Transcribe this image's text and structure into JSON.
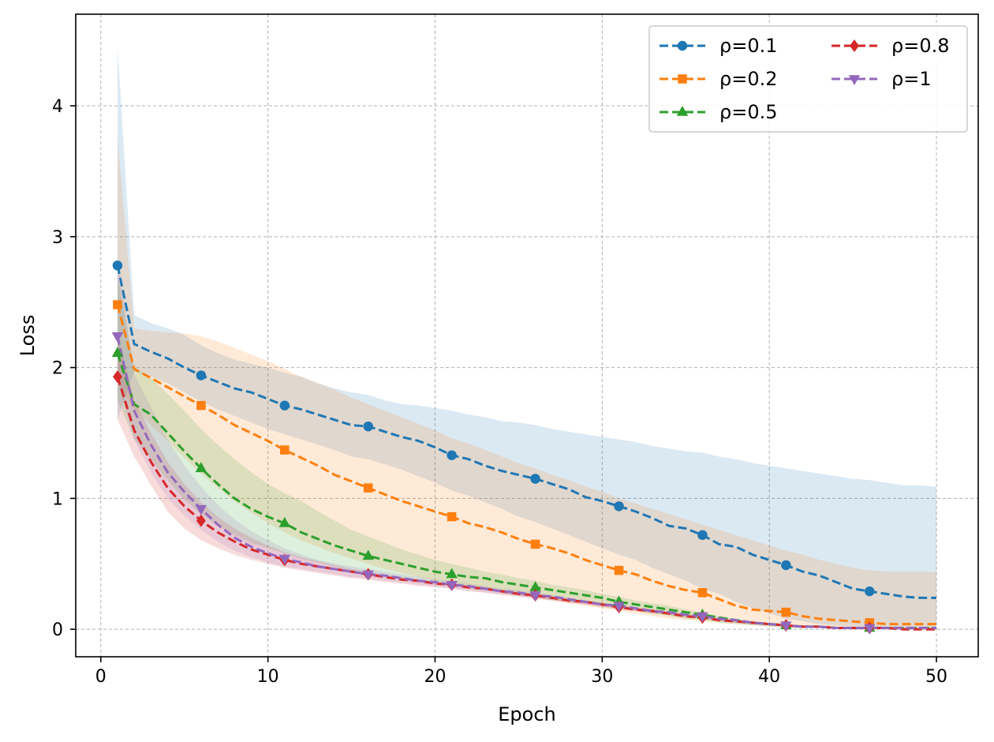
{
  "chart_data": {
    "type": "line",
    "title": "",
    "xlabel": "Epoch",
    "ylabel": "Loss",
    "xlim": [
      -1.5,
      52.5
    ],
    "ylim": [
      -0.21,
      4.7
    ],
    "xticks": [
      0,
      10,
      20,
      30,
      40,
      50
    ],
    "yticks": [
      0,
      1,
      2,
      3,
      4
    ],
    "grid": true,
    "legend": {
      "position": "top-right",
      "columns": 2
    },
    "x": [
      1,
      2,
      3,
      4,
      5,
      6,
      7,
      8,
      9,
      10,
      11,
      12,
      13,
      14,
      15,
      16,
      17,
      18,
      19,
      20,
      21,
      22,
      23,
      24,
      25,
      26,
      27,
      28,
      29,
      30,
      31,
      32,
      33,
      34,
      35,
      36,
      37,
      38,
      39,
      40,
      41,
      42,
      43,
      44,
      45,
      46,
      47,
      48,
      49,
      50
    ],
    "marker_every": [
      1,
      6,
      11,
      16,
      21,
      26,
      31,
      36,
      41,
      46
    ],
    "series": [
      {
        "name": "ρ=0.1",
        "color": "#1f77b4",
        "marker": "circle",
        "values": [
          2.78,
          2.18,
          2.12,
          2.07,
          2.0,
          1.94,
          1.89,
          1.84,
          1.81,
          1.76,
          1.71,
          1.68,
          1.64,
          1.6,
          1.56,
          1.55,
          1.51,
          1.47,
          1.44,
          1.39,
          1.33,
          1.3,
          1.25,
          1.21,
          1.18,
          1.15,
          1.11,
          1.07,
          1.01,
          0.98,
          0.94,
          0.9,
          0.85,
          0.79,
          0.77,
          0.72,
          0.65,
          0.63,
          0.57,
          0.53,
          0.49,
          0.44,
          0.41,
          0.36,
          0.31,
          0.29,
          0.27,
          0.25,
          0.24,
          0.24
        ],
        "upper": [
          4.45,
          2.4,
          2.34,
          2.3,
          2.25,
          2.17,
          2.11,
          2.06,
          2.03,
          2.0,
          1.96,
          1.93,
          1.88,
          1.84,
          1.81,
          1.79,
          1.75,
          1.72,
          1.71,
          1.69,
          1.67,
          1.64,
          1.62,
          1.59,
          1.58,
          1.56,
          1.53,
          1.51,
          1.49,
          1.47,
          1.45,
          1.43,
          1.4,
          1.38,
          1.36,
          1.35,
          1.32,
          1.3,
          1.27,
          1.25,
          1.23,
          1.21,
          1.19,
          1.17,
          1.15,
          1.14,
          1.12,
          1.1,
          1.1,
          1.09
        ],
        "lower": [
          1.6,
          1.97,
          1.93,
          1.88,
          1.81,
          1.74,
          1.68,
          1.63,
          1.58,
          1.53,
          1.49,
          1.45,
          1.41,
          1.37,
          1.32,
          1.3,
          1.26,
          1.22,
          1.17,
          1.12,
          1.06,
          1.02,
          0.97,
          0.92,
          0.86,
          0.82,
          0.77,
          0.72,
          0.67,
          0.62,
          0.57,
          0.53,
          0.47,
          0.42,
          0.37,
          0.31,
          0.27,
          0.21,
          0.16,
          0.12,
          0.08,
          0.06,
          0.04,
          0.03,
          0.02,
          0.02,
          0.01,
          0.01,
          0.01,
          0.01
        ]
      },
      {
        "name": "ρ=0.2",
        "color": "#ff7f0e",
        "marker": "square",
        "values": [
          2.48,
          1.99,
          1.92,
          1.85,
          1.78,
          1.71,
          1.64,
          1.56,
          1.5,
          1.44,
          1.37,
          1.31,
          1.25,
          1.18,
          1.13,
          1.08,
          1.03,
          0.98,
          0.94,
          0.9,
          0.86,
          0.81,
          0.78,
          0.74,
          0.69,
          0.65,
          0.62,
          0.58,
          0.53,
          0.49,
          0.45,
          0.42,
          0.37,
          0.33,
          0.3,
          0.28,
          0.23,
          0.18,
          0.15,
          0.14,
          0.13,
          0.1,
          0.08,
          0.07,
          0.06,
          0.05,
          0.04,
          0.04,
          0.04,
          0.04
        ],
        "upper": [
          3.75,
          2.3,
          2.28,
          2.27,
          2.26,
          2.24,
          2.2,
          2.15,
          2.1,
          2.05,
          1.99,
          1.93,
          1.88,
          1.83,
          1.77,
          1.72,
          1.67,
          1.62,
          1.57,
          1.52,
          1.46,
          1.42,
          1.37,
          1.32,
          1.27,
          1.23,
          1.18,
          1.14,
          1.09,
          1.05,
          1.0,
          0.96,
          0.92,
          0.88,
          0.84,
          0.8,
          0.76,
          0.72,
          0.68,
          0.64,
          0.6,
          0.57,
          0.53,
          0.5,
          0.47,
          0.45,
          0.44,
          0.44,
          0.44,
          0.44
        ],
        "lower": [
          1.88,
          1.68,
          1.56,
          1.44,
          1.31,
          1.19,
          1.08,
          0.98,
          0.89,
          0.81,
          0.74,
          0.68,
          0.63,
          0.58,
          0.54,
          0.5,
          0.46,
          0.43,
          0.4,
          0.37,
          0.34,
          0.32,
          0.3,
          0.28,
          0.26,
          0.24,
          0.22,
          0.2,
          0.18,
          0.16,
          0.14,
          0.12,
          0.1,
          0.08,
          0.07,
          0.06,
          0.05,
          0.04,
          0.03,
          0.02,
          0.02,
          0.01,
          0.01,
          0.01,
          0.0,
          0.0,
          0.0,
          0.0,
          0.0,
          0.0
        ]
      },
      {
        "name": "ρ=0.5",
        "color": "#2ca02c",
        "marker": "triangle-up",
        "values": [
          2.11,
          1.72,
          1.64,
          1.5,
          1.36,
          1.23,
          1.11,
          1.0,
          0.92,
          0.86,
          0.81,
          0.74,
          0.69,
          0.64,
          0.6,
          0.56,
          0.53,
          0.5,
          0.47,
          0.44,
          0.42,
          0.4,
          0.39,
          0.36,
          0.34,
          0.32,
          0.3,
          0.28,
          0.26,
          0.24,
          0.21,
          0.19,
          0.17,
          0.15,
          0.13,
          0.11,
          0.09,
          0.07,
          0.05,
          0.04,
          0.03,
          0.02,
          0.02,
          0.01,
          0.01,
          0.01,
          0.01,
          0.01,
          0.01,
          0.01
        ],
        "upper": [
          2.7,
          2.0,
          1.92,
          1.8,
          1.67,
          1.53,
          1.41,
          1.3,
          1.2,
          1.11,
          1.04,
          0.98,
          0.9,
          0.83,
          0.76,
          0.71,
          0.66,
          0.61,
          0.57,
          0.53,
          0.5,
          0.47,
          0.44,
          0.42,
          0.39,
          0.37,
          0.34,
          0.32,
          0.3,
          0.27,
          0.25,
          0.22,
          0.2,
          0.18,
          0.15,
          0.13,
          0.1,
          0.08,
          0.06,
          0.05,
          0.04,
          0.03,
          0.02,
          0.02,
          0.01,
          0.01,
          0.01,
          0.01,
          0.01,
          0.01
        ],
        "lower": [
          1.75,
          1.45,
          1.3,
          1.14,
          0.99,
          0.88,
          0.79,
          0.72,
          0.66,
          0.62,
          0.58,
          0.54,
          0.51,
          0.48,
          0.45,
          0.43,
          0.41,
          0.39,
          0.37,
          0.35,
          0.34,
          0.32,
          0.3,
          0.28,
          0.26,
          0.25,
          0.23,
          0.21,
          0.2,
          0.18,
          0.16,
          0.14,
          0.12,
          0.1,
          0.08,
          0.07,
          0.05,
          0.04,
          0.03,
          0.02,
          0.01,
          0.01,
          0.01,
          0.0,
          0.0,
          0.0,
          0.0,
          0.0,
          0.0,
          0.0
        ]
      },
      {
        "name": "ρ=0.8",
        "color": "#d62728",
        "marker": "diamond",
        "values": [
          1.93,
          1.52,
          1.28,
          1.08,
          0.94,
          0.83,
          0.74,
          0.67,
          0.61,
          0.57,
          0.53,
          0.5,
          0.48,
          0.46,
          0.44,
          0.42,
          0.4,
          0.38,
          0.37,
          0.35,
          0.34,
          0.32,
          0.31,
          0.29,
          0.27,
          0.26,
          0.24,
          0.22,
          0.21,
          0.19,
          0.17,
          0.15,
          0.14,
          0.12,
          0.1,
          0.09,
          0.07,
          0.06,
          0.05,
          0.04,
          0.03,
          0.02,
          0.02,
          0.01,
          0.01,
          0.01,
          0.01,
          0.0,
          0.0,
          0.0
        ],
        "upper": [
          2.25,
          1.75,
          1.5,
          1.28,
          1.11,
          0.97,
          0.86,
          0.77,
          0.7,
          0.64,
          0.59,
          0.55,
          0.52,
          0.49,
          0.46,
          0.44,
          0.42,
          0.4,
          0.38,
          0.36,
          0.35,
          0.33,
          0.32,
          0.3,
          0.28,
          0.27,
          0.25,
          0.23,
          0.22,
          0.2,
          0.18,
          0.16,
          0.15,
          0.13,
          0.11,
          0.1,
          0.08,
          0.07,
          0.05,
          0.04,
          0.03,
          0.02,
          0.02,
          0.01,
          0.01,
          0.01,
          0.01,
          0.01,
          0.01,
          0.01
        ],
        "lower": [
          1.6,
          1.32,
          1.1,
          0.9,
          0.77,
          0.68,
          0.62,
          0.57,
          0.53,
          0.5,
          0.47,
          0.45,
          0.43,
          0.41,
          0.39,
          0.38,
          0.36,
          0.35,
          0.33,
          0.32,
          0.31,
          0.29,
          0.28,
          0.26,
          0.25,
          0.23,
          0.22,
          0.2,
          0.19,
          0.17,
          0.15,
          0.14,
          0.12,
          0.11,
          0.09,
          0.08,
          0.06,
          0.05,
          0.04,
          0.03,
          0.02,
          0.01,
          0.01,
          0.01,
          0.0,
          0.0,
          0.0,
          0.0,
          0.0,
          0.0
        ]
      },
      {
        "name": "ρ=1",
        "color": "#9467bd",
        "marker": "triangle-down",
        "values": [
          2.24,
          1.67,
          1.41,
          1.2,
          1.05,
          0.92,
          0.8,
          0.7,
          0.63,
          0.58,
          0.54,
          0.51,
          0.48,
          0.46,
          0.44,
          0.42,
          0.41,
          0.39,
          0.37,
          0.36,
          0.34,
          0.33,
          0.31,
          0.29,
          0.28,
          0.26,
          0.25,
          0.23,
          0.21,
          0.19,
          0.18,
          0.16,
          0.14,
          0.13,
          0.11,
          0.1,
          0.08,
          0.07,
          0.05,
          0.04,
          0.03,
          0.02,
          0.02,
          0.01,
          0.01,
          0.01,
          0.01,
          0.01,
          0.01,
          0.01
        ],
        "upper": [
          2.85,
          1.95,
          1.7,
          1.45,
          1.25,
          1.09,
          0.95,
          0.84,
          0.75,
          0.68,
          0.62,
          0.57,
          0.53,
          0.5,
          0.48,
          0.46,
          0.44,
          0.42,
          0.4,
          0.38,
          0.37,
          0.35,
          0.33,
          0.31,
          0.3,
          0.28,
          0.26,
          0.24,
          0.22,
          0.2,
          0.19,
          0.17,
          0.15,
          0.14,
          0.12,
          0.1,
          0.09,
          0.07,
          0.06,
          0.04,
          0.03,
          0.03,
          0.02,
          0.02,
          0.01,
          0.01,
          0.01,
          0.01,
          0.01,
          0.01
        ],
        "lower": [
          1.9,
          1.45,
          1.2,
          1.0,
          0.87,
          0.76,
          0.67,
          0.6,
          0.55,
          0.51,
          0.48,
          0.46,
          0.44,
          0.42,
          0.4,
          0.39,
          0.37,
          0.36,
          0.34,
          0.33,
          0.31,
          0.3,
          0.28,
          0.27,
          0.25,
          0.24,
          0.22,
          0.21,
          0.19,
          0.17,
          0.16,
          0.14,
          0.13,
          0.11,
          0.1,
          0.08,
          0.07,
          0.05,
          0.04,
          0.03,
          0.02,
          0.02,
          0.01,
          0.01,
          0.0,
          0.0,
          0.0,
          0.0,
          0.0,
          0.0
        ]
      }
    ]
  }
}
